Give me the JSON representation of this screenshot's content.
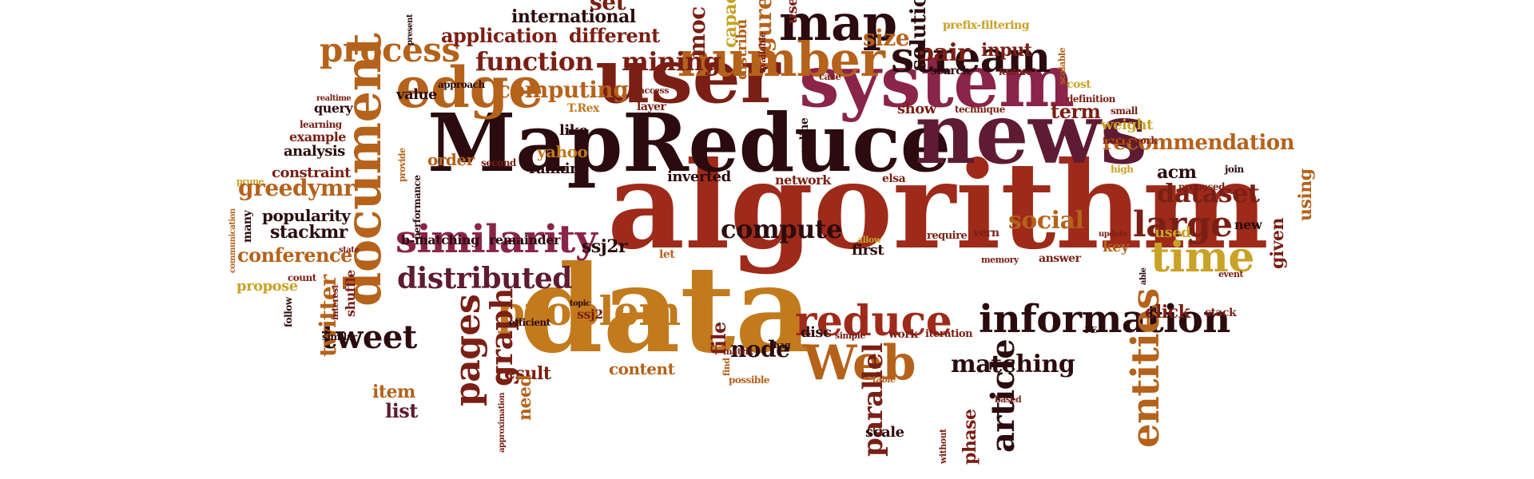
{
  "palette": {
    "red": "#9e2a1a",
    "dark_red": "#7a1f14",
    "maroon": "#5e1b33",
    "plum": "#4a1637",
    "magenta": "#8a2449",
    "brown": "#2b0b0e",
    "orange": "#c27a1c",
    "gold": "#c9a227",
    "ochre": "#b5621b",
    "background": "#ffffff"
  },
  "words": {
    "algorithm": "algorithm",
    "data": "data",
    "mapreduce": "MapReduce",
    "news": "news",
    "system": "system",
    "user": "user",
    "edge": "edge",
    "number": "number",
    "map": "map",
    "stream": "stream",
    "document": "document",
    "similarity": "similarity",
    "problem": "problem",
    "reduce": "reduce",
    "information": "information",
    "web": "Web",
    "tweet": "tweet",
    "distributed": "distributed",
    "process": "process",
    "function": "function",
    "mining": "mining",
    "computing": "computing",
    "time": "time",
    "large": "large",
    "dataset": "dataset",
    "social": "social",
    "compute": "compute",
    "matching": "matching",
    "node": "node",
    "pages": "pages",
    "graph": "graph",
    "twitter": "twitter",
    "entities": "entities",
    "article": "article",
    "parallel": "parallel",
    "recommendation": "recommendation",
    "application": "application",
    "different": "different",
    "international": "international",
    "set": "set",
    "size": "size",
    "pair": "pair",
    "input": "input",
    "solution": "solution",
    "figure": "figure",
    "capacity": "capac",
    "model": "moc",
    "distribution": "distribu",
    "use": "use",
    "prefix_filtering": "prefix-filtering",
    "search": "search",
    "feature": "feature",
    "scalable": "scalable",
    "cost": "cost",
    "definition": "definition",
    "small": "small",
    "term": "term",
    "weight": "weight",
    "framework": "framework",
    "acm": "acm",
    "high": "high",
    "join": "join",
    "proposed": "proposed",
    "using": "using",
    "new": "new",
    "given": "given",
    "used": "used",
    "key": "key",
    "answer": "answer",
    "update": "update",
    "memory": "memory",
    "event": "event",
    "click": "click",
    "stack": "stack",
    "pe": "PE",
    "based": "based",
    "scale": "scale",
    "phase": "phase",
    "without": "without",
    "work": "work",
    "iteration": "iteration",
    "simple": "simple",
    "disc": "disc",
    "bag": "bag",
    "table": "table",
    "possible": "possible",
    "find": "find",
    "matrix": "matrix",
    "file": "file",
    "content": "content",
    "result": "result",
    "need": "need",
    "approximation": "approximation",
    "item": "item",
    "list": "list",
    "ssj2": "ssj2",
    "ssj2r": "ssj2r",
    "topic": "topic",
    "efficient": "efficient",
    "let": "let",
    "allow": "allow",
    "first": "first",
    "vern": "vern",
    "require": "require",
    "elsa": "elsa",
    "network": "network",
    "inverted": "inverted",
    "online": "online",
    "show": "show",
    "technique": "technique",
    "layer": "layer",
    "access": "access",
    "case": "case",
    "available": "available",
    "approach": "approach",
    "value": "value",
    "trex": "T.Rex",
    "like": "like",
    "second": "second",
    "yahoo": "yahoo",
    "ranking": "ranking",
    "order": "order",
    "provide": "provide",
    "performance": "performance",
    "b_matching": "b-matching",
    "remainder": "remainder",
    "query": "query",
    "realtime": "realtime",
    "learning": "learning",
    "example": "example",
    "analysis": "analysis",
    "constraint": "constraint",
    "prune": "prune",
    "greedymr": "greedymr",
    "popularity": "popularity",
    "stackmr": "stackmr",
    "conference": "conference",
    "count": "count",
    "propose": "propose",
    "communication": "communication",
    "many": "many",
    "state": "state",
    "shuffle": "shuffle",
    "interest": "interest",
    "follow": "follow",
    "similar": "similar",
    "present": "present",
    "able": "able",
    "search_v": "search"
  }
}
